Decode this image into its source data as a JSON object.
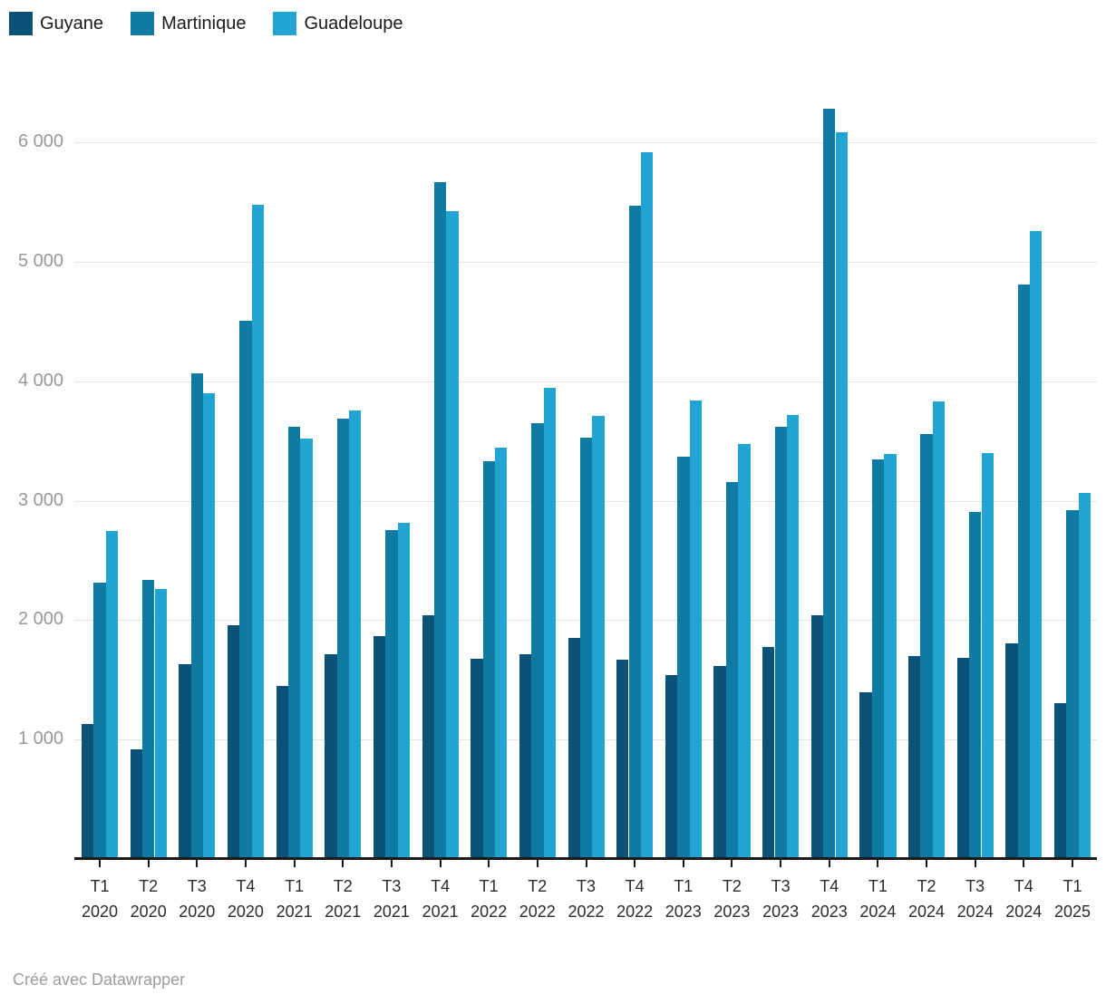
{
  "chart_data": {
    "type": "bar",
    "categories": [
      {
        "quarter": "T1",
        "year": "2020"
      },
      {
        "quarter": "T2",
        "year": "2020"
      },
      {
        "quarter": "T3",
        "year": "2020"
      },
      {
        "quarter": "T4",
        "year": "2020"
      },
      {
        "quarter": "T1",
        "year": "2021"
      },
      {
        "quarter": "T2",
        "year": "2021"
      },
      {
        "quarter": "T3",
        "year": "2021"
      },
      {
        "quarter": "T4",
        "year": "2021"
      },
      {
        "quarter": "T1",
        "year": "2022"
      },
      {
        "quarter": "T2",
        "year": "2022"
      },
      {
        "quarter": "T3",
        "year": "2022"
      },
      {
        "quarter": "T4",
        "year": "2022"
      },
      {
        "quarter": "T1",
        "year": "2023"
      },
      {
        "quarter": "T2",
        "year": "2023"
      },
      {
        "quarter": "T3",
        "year": "2023"
      },
      {
        "quarter": "T4",
        "year": "2023"
      },
      {
        "quarter": "T1",
        "year": "2024"
      },
      {
        "quarter": "T2",
        "year": "2024"
      },
      {
        "quarter": "T3",
        "year": "2024"
      },
      {
        "quarter": "T4",
        "year": "2024"
      },
      {
        "quarter": "T1",
        "year": "2025"
      }
    ],
    "series": [
      {
        "name": "Guyane",
        "color": "#0d5276",
        "values": [
          1120,
          910,
          1620,
          1950,
          1440,
          1710,
          1860,
          2030,
          1670,
          1710,
          1840,
          1660,
          1530,
          1610,
          1770,
          2030,
          1390,
          1690,
          1680,
          1800,
          1300
        ]
      },
      {
        "name": "Martinique",
        "color": "#0f7ba3",
        "values": [
          2310,
          2330,
          4060,
          4500,
          3610,
          3680,
          2750,
          5660,
          3320,
          3640,
          3520,
          5460,
          3360,
          3150,
          3610,
          6270,
          3340,
          3550,
          2900,
          4800,
          2910
        ]
      },
      {
        "name": "Guadeloupe",
        "color": "#21a4d1",
        "values": [
          2740,
          2250,
          3890,
          5470,
          3510,
          3750,
          2810,
          5420,
          3440,
          3940,
          3700,
          5910,
          3830,
          3470,
          3710,
          6080,
          3380,
          3820,
          3390,
          5250,
          3060
        ]
      }
    ],
    "yticks": [
      1000,
      2000,
      3000,
      4000,
      5000,
      6000
    ],
    "ytick_labels": [
      "1 000",
      "2 000",
      "3 000",
      "4 000",
      "5 000",
      "6 000"
    ],
    "ylim": [
      0,
      6500
    ],
    "grid": true,
    "legend_position": "top-left",
    "footer": "Créé avec Datawrapper"
  }
}
